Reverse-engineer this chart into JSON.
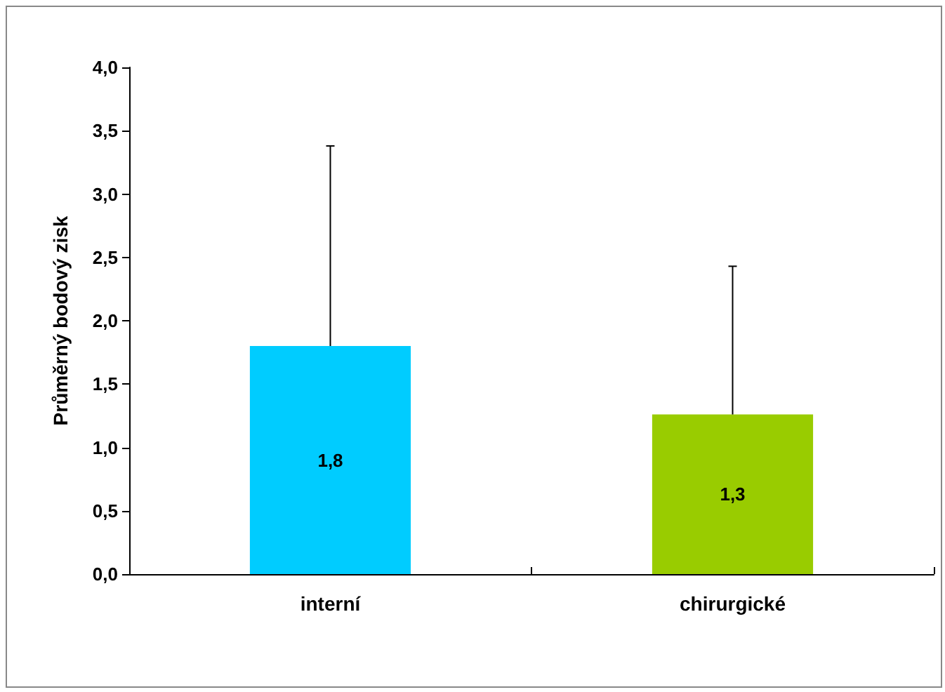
{
  "chart_data": {
    "type": "bar",
    "ylabel": "Průměrný bodový zisk",
    "categories": [
      "interní",
      "chirurgické"
    ],
    "values": [
      1.8,
      1.26
    ],
    "colors": [
      "#00ccff",
      "#99cc00"
    ],
    "value_labels": [
      "1,8",
      "1,3"
    ],
    "errors": [
      [
        1.8,
        3.38
      ],
      [
        1.26,
        2.43
      ]
    ],
    "ylim": [
      0,
      4
    ],
    "yticks": [
      {
        "value": 0,
        "label": "0,0"
      },
      {
        "value": 0.5,
        "label": "0,5"
      },
      {
        "value": 1,
        "label": "1,0"
      },
      {
        "value": 1.5,
        "label": "1,5"
      },
      {
        "value": 2,
        "label": "2,0"
      },
      {
        "value": 2.5,
        "label": "2,5"
      },
      {
        "value": 3,
        "label": "3,0"
      },
      {
        "value": 3.5,
        "label": "3,5"
      },
      {
        "value": 4,
        "label": "4,0"
      }
    ],
    "grid": false
  }
}
